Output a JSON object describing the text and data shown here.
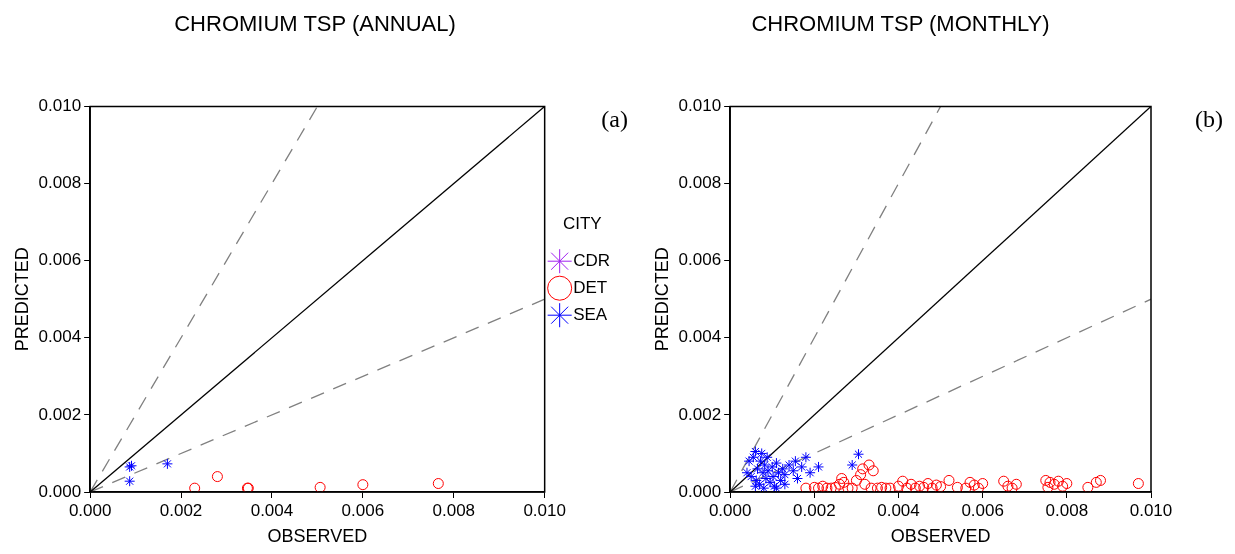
{
  "chart_data": [
    {
      "type": "scatter",
      "title": "CHROMIUM TSP (ANNUAL)",
      "xlabel": "OBSERVED",
      "ylabel": "PREDICTED",
      "legend_title": "CITY",
      "annotations": [
        "(a)"
      ],
      "xlim": [
        0,
        0.01
      ],
      "ylim": [
        0,
        0.01
      ],
      "xticks": [
        {
          "value": 0,
          "label": "0.000"
        },
        {
          "value": 0.002,
          "label": "0.002"
        },
        {
          "value": 0.004,
          "label": "0.004"
        },
        {
          "value": 0.006,
          "label": "0.006"
        },
        {
          "value": 0.008,
          "label": "0.008"
        },
        {
          "value": 0.01,
          "label": "0.010"
        }
      ],
      "yticks": [
        {
          "value": 0,
          "label": "0.000"
        },
        {
          "value": 0.002,
          "label": "0.002"
        },
        {
          "value": 0.004,
          "label": "0.004"
        },
        {
          "value": 0.006,
          "label": "0.006"
        },
        {
          "value": 0.008,
          "label": "0.008"
        },
        {
          "value": 0.01,
          "label": "0.010"
        }
      ],
      "grid": false,
      "legend": "right",
      "series": [
        {
          "type": "line",
          "color": "#000000",
          "line_style": "solid",
          "marker": "none",
          "x": [
            0,
            0.01
          ],
          "values": [
            0,
            0.01
          ]
        },
        {
          "type": "line",
          "color": "#808080",
          "line_style": "dashed",
          "marker": "none",
          "x": [
            0,
            0.005
          ],
          "values": [
            0,
            0.01
          ]
        },
        {
          "type": "line",
          "color": "#808080",
          "line_style": "dashed",
          "marker": "none",
          "x": [
            0,
            0.01
          ],
          "values": [
            0,
            0.005
          ]
        },
        {
          "name": "CDR",
          "color": "#a020f0",
          "marker": "cross"
        },
        {
          "name": "DET",
          "color": "#ff0000",
          "marker": "circle",
          "x": [
            0.0023,
            0.0028,
            0.00346,
            0.00348,
            0.00506,
            0.006,
            0.00766
          ],
          "values": [
            0.0001,
            0.0004,
            0.0001,
            0.0001,
            0.00012,
            0.00019,
            0.00022
          ]
        },
        {
          "name": "SEA",
          "color": "#0000ff",
          "marker": "cross",
          "x": [
            0.00087,
            0.00091,
            0.00087,
            0.0017
          ],
          "values": [
            0.00065,
            0.00068,
            0.00028,
            0.00073
          ]
        }
      ]
    },
    {
      "type": "scatter",
      "title": "CHROMIUM TSP (MONTHLY)",
      "xlabel": "OBSERVED",
      "ylabel": "PREDICTED",
      "annotations": [
        "(b)"
      ],
      "xlim": [
        0,
        0.01
      ],
      "ylim": [
        0,
        0.01
      ],
      "xticks": [
        {
          "value": 0,
          "label": "0.000"
        },
        {
          "value": 0.002,
          "label": "0.002"
        },
        {
          "value": 0.004,
          "label": "0.004"
        },
        {
          "value": 0.006,
          "label": "0.006"
        },
        {
          "value": 0.008,
          "label": "0.008"
        },
        {
          "value": 0.01,
          "label": "0.010"
        }
      ],
      "yticks": [
        {
          "value": 0,
          "label": "0.000"
        },
        {
          "value": 0.002,
          "label": "0.002"
        },
        {
          "value": 0.004,
          "label": "0.004"
        },
        {
          "value": 0.006,
          "label": "0.006"
        },
        {
          "value": 0.008,
          "label": "0.008"
        },
        {
          "value": 0.01,
          "label": "0.010"
        }
      ],
      "grid": false,
      "series": [
        {
          "type": "line",
          "color": "#000000",
          "line_style": "solid",
          "marker": "none",
          "x": [
            0,
            0.01
          ],
          "values": [
            0,
            0.01
          ]
        },
        {
          "type": "line",
          "color": "#808080",
          "line_style": "dashed",
          "marker": "none",
          "x": [
            0,
            0.005
          ],
          "values": [
            0,
            0.01
          ]
        },
        {
          "type": "line",
          "color": "#808080",
          "line_style": "dashed",
          "marker": "none",
          "x": [
            0,
            0.01
          ],
          "values": [
            0,
            0.005
          ]
        },
        {
          "color": "#ff0000",
          "marker": "circle",
          "x": [
            0.0018,
            0.002,
            0.0021,
            0.0022,
            0.0023,
            0.0024,
            0.0025,
            0.0026,
            0.00265,
            0.0027,
            0.0028,
            0.0029,
            0.003,
            0.0031,
            0.00315,
            0.0032,
            0.0033,
            0.00335,
            0.0034,
            0.0035,
            0.0036,
            0.0037,
            0.0038,
            0.004,
            0.0041,
            0.0042,
            0.0043,
            0.0044,
            0.0045,
            0.0046,
            0.0047,
            0.0048,
            0.0049,
            0.005,
            0.0052,
            0.0054,
            0.0056,
            0.0057,
            0.0058,
            0.0059,
            0.006,
            0.0065,
            0.0066,
            0.0067,
            0.0068,
            0.0075,
            0.00755,
            0.0076,
            0.0077,
            0.0078,
            0.0079,
            0.008,
            0.0085,
            0.0087,
            0.0088,
            0.0097
          ],
          "values": [
            0.0001,
            0.00012,
            0.0001,
            0.00015,
            0.0001,
            0.0001,
            0.00012,
            0.0002,
            0.00035,
            0.00025,
            0.0001,
            0.0001,
            0.0003,
            0.00045,
            0.0006,
            0.0002,
            0.0007,
            0.0001,
            0.00055,
            0.0001,
            0.00012,
            0.0001,
            0.0001,
            0.00015,
            0.00028,
            0.0001,
            0.0002,
            0.0001,
            0.00015,
            0.00012,
            0.00022,
            0.0001,
            0.00018,
            0.00014,
            0.0003,
            0.00012,
            0.0001,
            0.00025,
            0.00018,
            0.0001,
            0.00022,
            0.00028,
            0.00015,
            0.0001,
            0.0002,
            0.0003,
            0.00012,
            0.00025,
            0.0002,
            0.00028,
            0.00015,
            0.00022,
            0.00012,
            0.00025,
            0.0003,
            0.00022
          ]
        },
        {
          "color": "#0000ff",
          "marker": "cross",
          "x": [
            0.0005,
            0.00055,
            0.0006,
            0.00062,
            0.00065,
            0.0007,
            0.00072,
            0.00075,
            0.00078,
            0.0008,
            0.00082,
            0.00085,
            0.00088,
            0.0009,
            0.00095,
            0.001,
            0.00102,
            0.00105,
            0.0011,
            0.00115,
            0.0012,
            0.00125,
            0.0013,
            0.0014,
            0.0015,
            0.00155,
            0.0016,
            0.0017,
            0.0018,
            0.0019,
            0.0021,
            0.0029,
            0.00305,
            0.0004,
            0.00045,
            0.0006,
            0.0011,
            0.0013
          ],
          "values": [
            0.0004,
            0.0009,
            0.00105,
            0.0003,
            0.0006,
            0.0002,
            0.0008,
            0.001,
            0.0005,
            0.0001,
            0.0007,
            0.00035,
            0.0009,
            0.00055,
            0.00025,
            0.00065,
            0.0004,
            0.00015,
            0.00075,
            0.0005,
            0.0003,
            0.0006,
            0.00045,
            0.0007,
            0.00055,
            0.0008,
            0.00035,
            0.00065,
            0.0009,
            0.0005,
            0.00065,
            0.0007,
            0.00098,
            0.0005,
            0.0008,
            0.00015,
            0.0001,
            0.0002
          ]
        }
      ]
    }
  ]
}
